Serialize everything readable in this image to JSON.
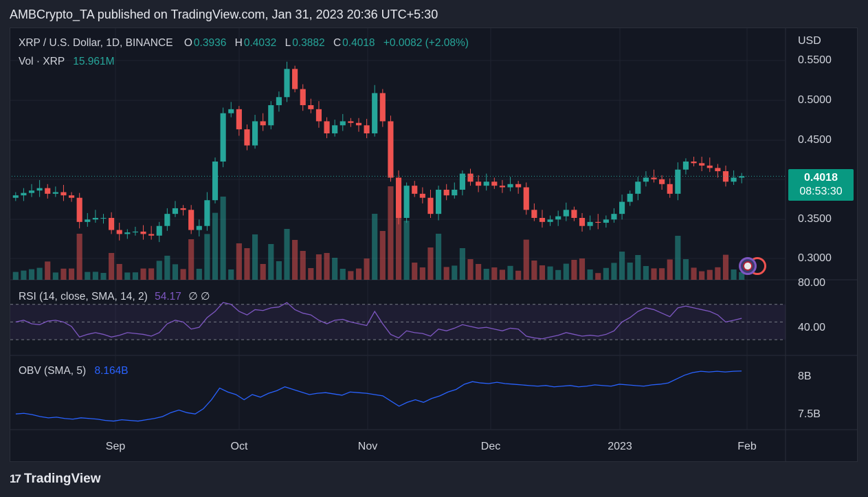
{
  "header": {
    "publisher_line": "AMBCrypto_TA published on TradingView.com, Jan 31, 2023 20:36 UTC+5:30"
  },
  "legend": {
    "symbol": "XRP / U.S. Dollar, 1D, BINANCE",
    "o_label": "O",
    "o_value": "0.3936",
    "h_label": "H",
    "h_value": "0.4032",
    "l_label": "L",
    "l_value": "0.3882",
    "c_label": "C",
    "c_value": "0.4018",
    "change": "+0.0082 (+2.08%)",
    "vol_label": "Vol · XRP",
    "vol_value": "15.961M"
  },
  "rsi": {
    "label": "RSI (14, close, SMA, 14, 2)",
    "value": "54.17",
    "extra": "∅ ∅",
    "ticks": [
      "80.00",
      "40.00"
    ]
  },
  "obv": {
    "label": "OBV (SMA, 5)",
    "value": "8.164B",
    "ticks": [
      "8B",
      "7.5B"
    ]
  },
  "price_axis": {
    "currency": "USD",
    "ticks": [
      "0.5500",
      "0.5000",
      "0.4500",
      "0.3500",
      "0.3000"
    ],
    "last_price": "0.4018",
    "countdown": "08:53:30"
  },
  "time_axis": {
    "ticks": [
      "Sep",
      "Oct",
      "Nov",
      "Dec",
      "2023",
      "Feb"
    ]
  },
  "footer": {
    "brand": "TradingView",
    "logo": "17"
  },
  "colors": {
    "up": "#26a69a",
    "down": "#ef5350",
    "rsi": "#7e57c2",
    "obv": "#2962ff",
    "background": "#131722",
    "badge": "#089981"
  },
  "chart_data": [
    {
      "type": "candlestick",
      "title": "XRP / U.S. Dollar, 1D, BINANCE",
      "ylabel": "USD",
      "ylim": [
        0.28,
        0.56
      ],
      "x_ticks": [
        "Sep",
        "Oct",
        "Nov",
        "Dec",
        "2023",
        "Feb"
      ],
      "close_path": [
        0.378,
        0.381,
        0.384,
        0.387,
        0.38,
        0.382,
        0.378,
        0.375,
        0.345,
        0.348,
        0.35,
        0.35,
        0.335,
        0.33,
        0.332,
        0.333,
        0.33,
        0.328,
        0.34,
        0.355,
        0.362,
        0.36,
        0.335,
        0.34,
        0.372,
        0.42,
        0.48,
        0.485,
        0.46,
        0.44,
        0.47,
        0.465,
        0.49,
        0.5,
        0.535,
        0.51,
        0.49,
        0.485,
        0.47,
        0.455,
        0.465,
        0.47,
        0.468,
        0.465,
        0.455,
        0.505,
        0.47,
        0.4,
        0.35,
        0.39,
        0.38,
        0.375,
        0.355,
        0.385,
        0.378,
        0.385,
        0.405,
        0.395,
        0.39,
        0.395,
        0.39,
        0.388,
        0.392,
        0.388,
        0.36,
        0.35,
        0.345,
        0.348,
        0.352,
        0.36,
        0.35,
        0.34,
        0.345,
        0.344,
        0.348,
        0.355,
        0.37,
        0.38,
        0.395,
        0.4,
        0.398,
        0.392,
        0.38,
        0.41,
        0.42,
        0.418,
        0.415,
        0.412,
        0.408,
        0.395,
        0.4,
        0.4018
      ],
      "open": 0.3936,
      "high": 0.4032,
      "low": 0.3882,
      "close": 0.4018,
      "change": "+0.0082 (+2.08%)"
    },
    {
      "type": "bar",
      "title": "Vol · XRP",
      "last_value": "15.961M"
    },
    {
      "type": "line",
      "title": "RSI (14, close, SMA, 14, 2)",
      "ylim": [
        20,
        90
      ],
      "bands": [
        70,
        50,
        30
      ],
      "values": [
        50,
        52,
        48,
        47,
        51,
        52,
        50,
        45,
        33,
        36,
        38,
        36,
        33,
        35,
        38,
        37,
        36,
        34,
        38,
        48,
        52,
        50,
        42,
        44,
        55,
        62,
        72,
        70,
        62,
        58,
        64,
        63,
        66,
        67,
        72,
        64,
        60,
        58,
        52,
        48,
        52,
        53,
        50,
        48,
        46,
        62,
        48,
        36,
        32,
        40,
        38,
        37,
        34,
        42,
        40,
        43,
        47,
        45,
        43,
        44,
        42,
        40,
        43,
        42,
        34,
        32,
        31,
        33,
        35,
        38,
        36,
        34,
        35,
        34,
        36,
        40,
        50,
        55,
        62,
        66,
        64,
        60,
        56,
        66,
        68,
        66,
        64,
        62,
        58,
        50,
        52,
        54.17
      ]
    },
    {
      "type": "line",
      "title": "OBV (SMA, 5)",
      "ylim": [
        7.3,
        8.3
      ],
      "values": [
        7.5,
        7.51,
        7.49,
        7.46,
        7.44,
        7.45,
        7.43,
        7.42,
        7.44,
        7.43,
        7.42,
        7.4,
        7.39,
        7.41,
        7.4,
        7.39,
        7.41,
        7.43,
        7.46,
        7.52,
        7.56,
        7.52,
        7.5,
        7.58,
        7.72,
        7.9,
        7.84,
        7.8,
        7.72,
        7.8,
        7.76,
        7.82,
        7.86,
        7.92,
        7.88,
        7.84,
        7.8,
        7.82,
        7.83,
        7.81,
        7.79,
        7.84,
        7.83,
        7.82,
        7.8,
        7.78,
        7.7,
        7.62,
        7.68,
        7.72,
        7.68,
        7.74,
        7.78,
        7.84,
        7.88,
        7.96,
        8.0,
        7.98,
        7.97,
        7.99,
        7.97,
        7.96,
        7.95,
        7.94,
        7.93,
        7.94,
        7.92,
        7.93,
        7.94,
        7.92,
        7.93,
        7.95,
        7.94,
        7.93,
        7.96,
        7.95,
        7.94,
        7.93,
        7.95,
        7.96,
        7.98,
        8.04,
        8.1,
        8.14,
        8.16,
        8.15,
        8.16,
        8.15,
        8.16,
        8.164
      ]
    }
  ]
}
